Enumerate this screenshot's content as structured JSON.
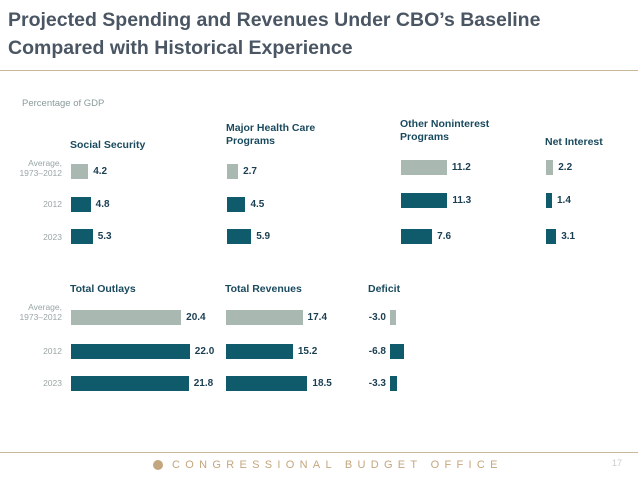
{
  "title_lines": [
    "Projected Spending and Revenues Under CBO’s Baseline",
    "Compared with Historical Experience"
  ],
  "footer": {
    "org": "CONGRESSIONAL BUDGET OFFICE",
    "page": "17"
  },
  "colors": {
    "average": "#a9b8b1",
    "projection": "#0f5a6b",
    "rule": "#c8b89a"
  },
  "chart_data": {
    "type": "bar",
    "orientation": "horizontal",
    "unit_label": "Percentage of GDP",
    "categories": [
      "Average, 1973–2012",
      "2012",
      "2023"
    ],
    "panels": [
      {
        "title": "Social Security",
        "values": [
          4.2,
          4.8,
          5.3
        ]
      },
      {
        "title": "Major Health Care Programs",
        "values": [
          2.7,
          4.5,
          5.9
        ]
      },
      {
        "title": "Other Noninterest Programs",
        "values": [
          11.2,
          11.3,
          7.6
        ]
      },
      {
        "title": "Net Interest",
        "values": [
          2.2,
          1.4,
          3.1
        ]
      },
      {
        "title": "Total Outlays",
        "values": [
          20.4,
          22.0,
          21.8
        ]
      },
      {
        "title": "Total Revenues",
        "values": [
          17.4,
          15.2,
          18.5
        ]
      },
      {
        "title": "Deficit",
        "values": [
          -3.0,
          -6.8,
          -3.3
        ]
      }
    ]
  }
}
